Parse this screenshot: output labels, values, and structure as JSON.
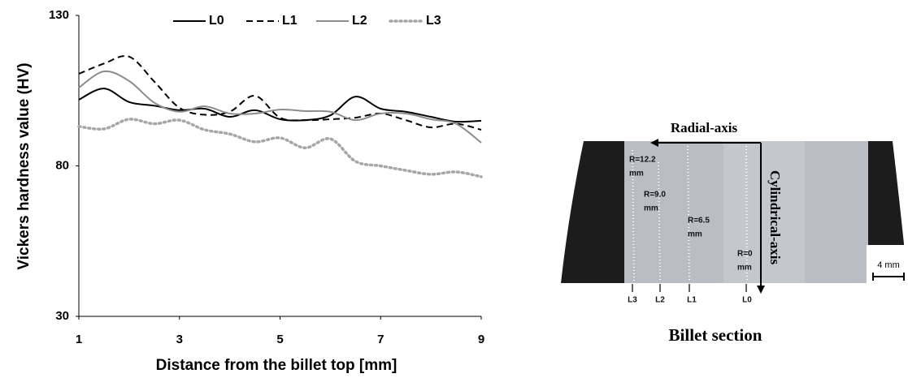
{
  "chart_data": {
    "type": "line",
    "x_label": "Distance from the billet top [mm]",
    "y_label": "Vickers hardness value (HV)",
    "x": [
      1,
      1.5,
      2,
      2.5,
      3,
      3.5,
      4,
      4.5,
      5,
      5.5,
      6,
      6.5,
      7,
      7.5,
      8,
      8.5,
      9
    ],
    "xlim": [
      1,
      9
    ],
    "xticks": [
      1,
      3,
      5,
      7,
      9
    ],
    "ylim": [
      30,
      130
    ],
    "yticks": [
      30,
      80,
      130
    ],
    "series": [
      {
        "name": "L0",
        "color": "#000000",
        "dash": "solid",
        "values": [
          102,
          105.7,
          101.2,
          100,
          98.5,
          99,
          96.3,
          98.5,
          95.5,
          95.2,
          96.8,
          103,
          99,
          98,
          96.3,
          94.7,
          95
        ]
      },
      {
        "name": "L1",
        "color": "#000000",
        "dash": "dashed",
        "values": [
          110.6,
          114,
          116.3,
          108,
          99.3,
          97,
          98,
          103.3,
          96,
          95.2,
          95.5,
          96,
          97.4,
          95.2,
          92.8,
          94,
          92
        ]
      },
      {
        "name": "L2",
        "color": "#8c8c8c",
        "dash": "solid",
        "values": [
          106,
          111.4,
          108.2,
          101,
          98,
          99.8,
          97.4,
          97.4,
          98.7,
          98.2,
          98,
          95.2,
          97.4,
          97.4,
          95.5,
          94,
          87.7
        ]
      },
      {
        "name": "L3",
        "color": "#a6a6a6",
        "dash": "dotted",
        "values": [
          93.1,
          92.3,
          95.5,
          94,
          95.2,
          92,
          90.6,
          88,
          89.3,
          86,
          89,
          81.5,
          80,
          78.5,
          77.2,
          78,
          76.4
        ]
      }
    ],
    "legend": "top"
  },
  "billet_section": {
    "title": "Billet section",
    "radial_axis": "Radial-axis",
    "cylindrical_axis": "Cylindrical-axis",
    "radius_labels": [
      [
        "R=12.2",
        "mm"
      ],
      [
        "R=9.0",
        "mm"
      ],
      [
        "R=6.5",
        "mm"
      ],
      [
        "R=0",
        "mm"
      ]
    ],
    "line_labels": [
      "L3",
      "L2",
      "L1",
      "L0"
    ],
    "scale_bar": "4 mm"
  }
}
